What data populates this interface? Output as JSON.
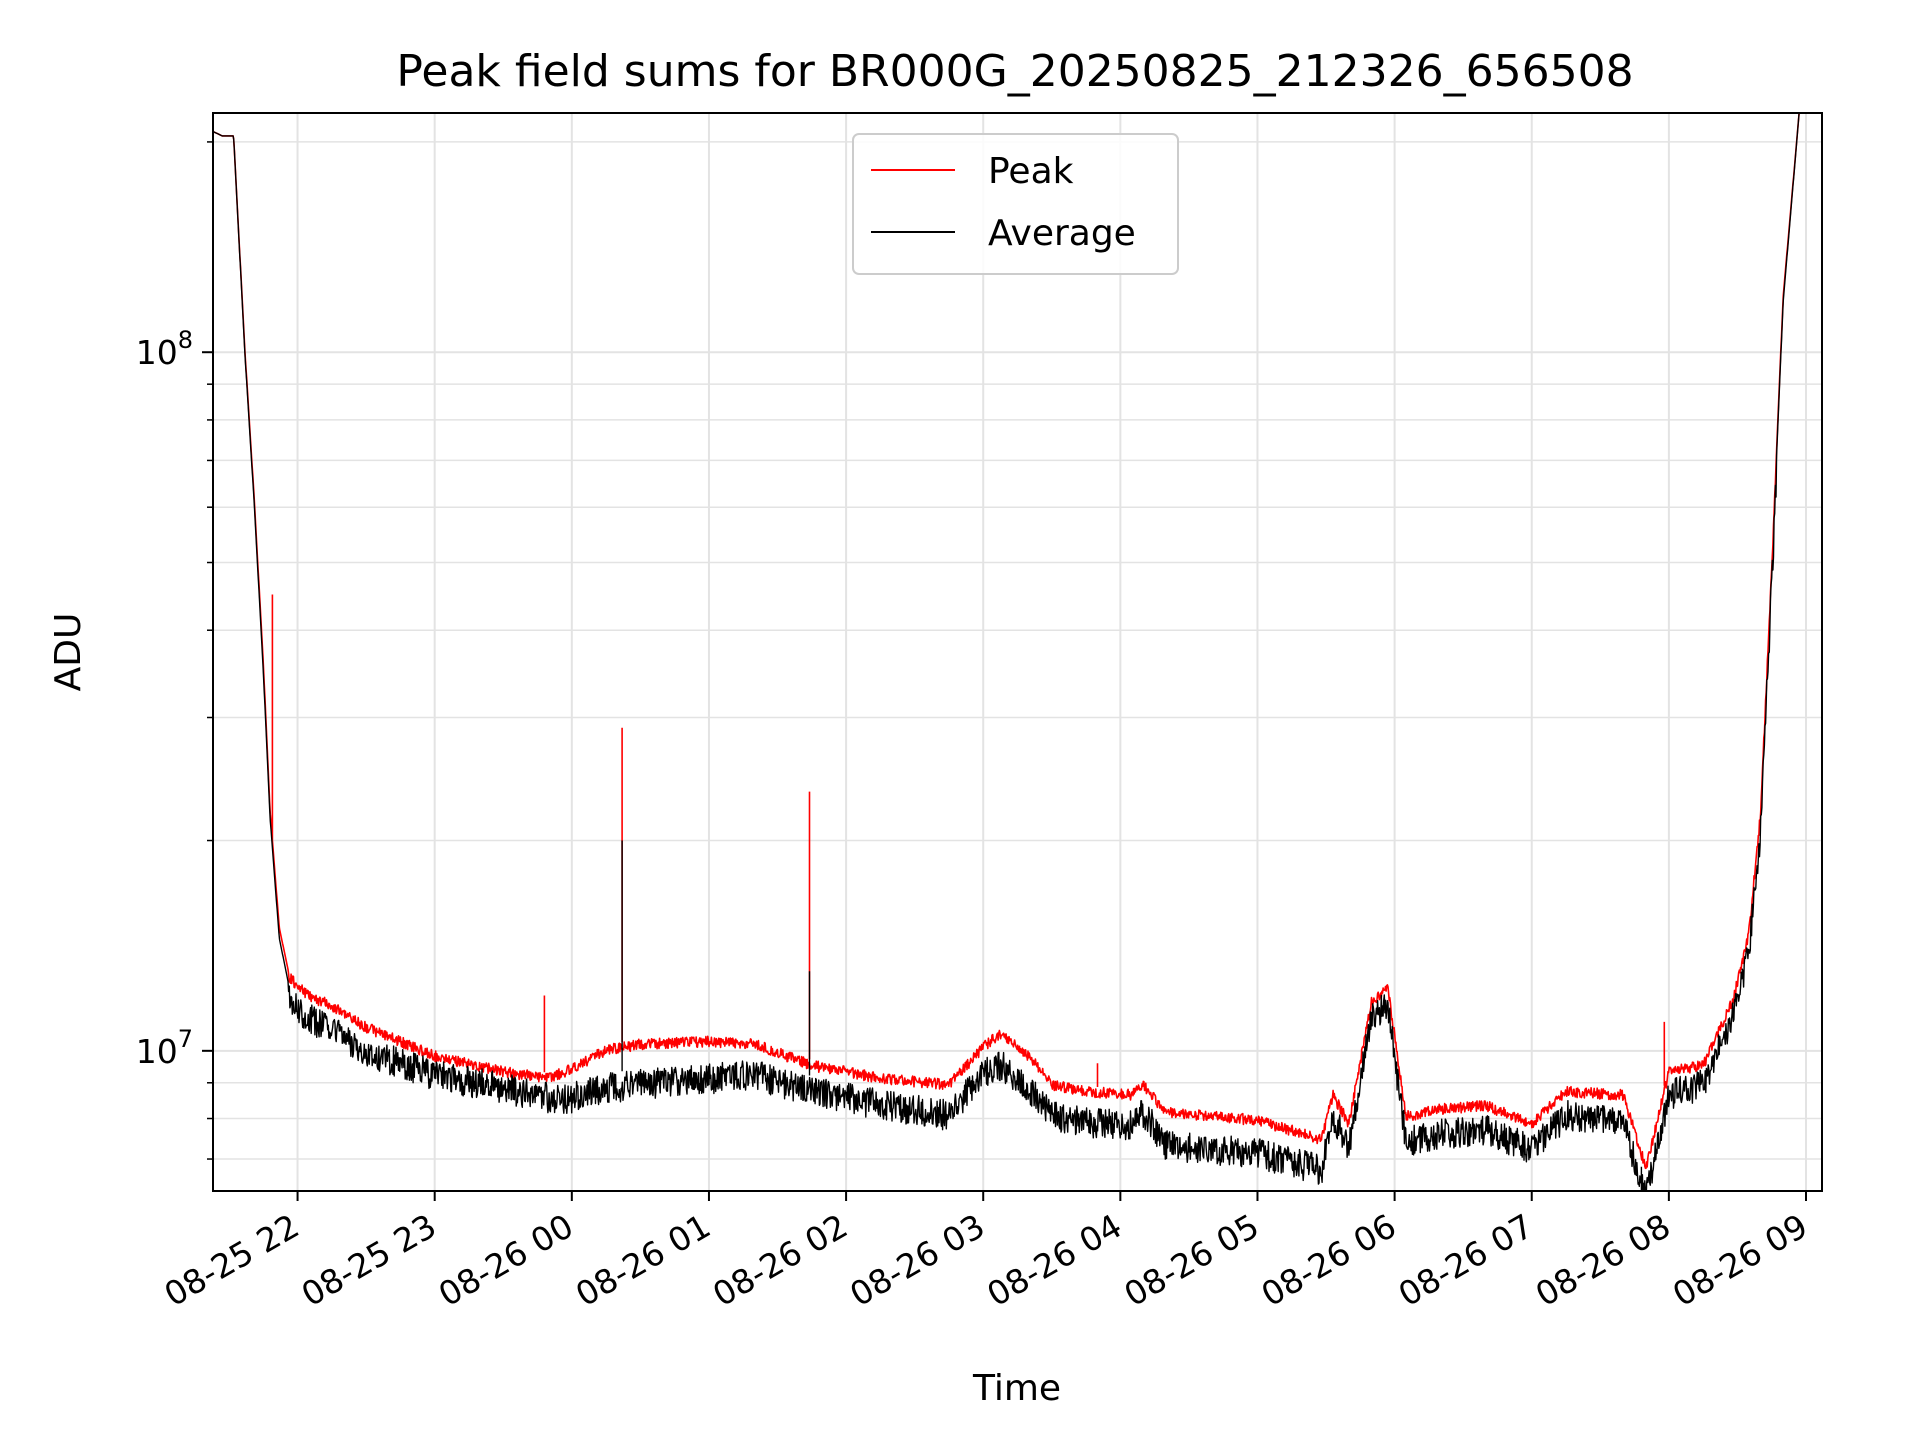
{
  "chart_data": {
    "type": "line",
    "title": "Peak field sums for BR000G_20250825_212326_656508",
    "xlabel": "Time",
    "ylabel": "ADU",
    "x_axis": {
      "kind": "datetime",
      "range": [
        "2025-08-25T21:23",
        "2025-08-26T09:07"
      ],
      "ticks": [
        "2025-08-25T22:00",
        "2025-08-25T23:00",
        "2025-08-26T00:00",
        "2025-08-26T01:00",
        "2025-08-26T02:00",
        "2025-08-26T03:00",
        "2025-08-26T04:00",
        "2025-08-26T05:00",
        "2025-08-26T06:00",
        "2025-08-26T07:00",
        "2025-08-26T08:00",
        "2025-08-26T09:00"
      ],
      "tick_labels": [
        "08-25 22",
        "08-25 23",
        "08-26 00",
        "08-26 01",
        "08-26 02",
        "08-26 03",
        "08-26 04",
        "08-26 05",
        "08-26 06",
        "08-26 07",
        "08-26 08",
        "08-26 09"
      ],
      "tick_label_rotation": 30
    },
    "y_axis": {
      "scale": "log",
      "range": [
        6300000,
        220000000
      ],
      "major_ticks": [
        10000000,
        100000000
      ],
      "major_tick_labels": [
        {
          "base": "10",
          "exp": "7"
        },
        {
          "base": "10",
          "exp": "8"
        }
      ],
      "minor_ticks": [
        7000000,
        8000000,
        9000000,
        20000000,
        30000000,
        40000000,
        50000000,
        60000000,
        70000000,
        80000000,
        90000000,
        200000000
      ]
    },
    "grid": true,
    "legend_position": "top-center",
    "series": [
      {
        "name": "Peak",
        "color": "#ff0000",
        "points": [
          [
            "2025-08-25T21:23",
            207000000
          ],
          [
            "2025-08-25T21:27",
            204000000
          ],
          [
            "2025-08-25T21:32",
            204000000
          ],
          [
            "2025-08-25T21:37",
            100000000
          ],
          [
            "2025-08-25T21:41",
            62000000
          ],
          [
            "2025-08-25T21:45",
            36000000
          ],
          [
            "2025-08-25T21:48",
            22000000
          ],
          [
            "2025-08-25T21:52",
            15000000
          ],
          [
            "2025-08-25T21:56",
            13000000
          ],
          [
            "2025-08-25T22:05",
            12200000
          ],
          [
            "2025-08-25T22:15",
            11800000
          ],
          [
            "2025-08-25T22:30",
            11000000
          ],
          [
            "2025-08-25T23:00",
            10000000
          ],
          [
            "2025-08-25T23:30",
            9500000
          ],
          [
            "2025-08-25T23:50",
            9300000
          ],
          [
            "2025-08-26T00:00",
            9600000
          ],
          [
            "2025-08-26T00:15",
            10200000
          ],
          [
            "2025-08-26T00:30",
            10400000
          ],
          [
            "2025-08-26T01:00",
            10500000
          ],
          [
            "2025-08-26T01:20",
            10400000
          ],
          [
            "2025-08-26T01:45",
            9700000
          ],
          [
            "2025-08-26T02:15",
            9300000
          ],
          [
            "2025-08-26T02:45",
            9100000
          ],
          [
            "2025-08-26T03:00",
            10300000
          ],
          [
            "2025-08-26T03:08",
            10800000
          ],
          [
            "2025-08-26T03:20",
            10000000
          ],
          [
            "2025-08-26T03:30",
            9100000
          ],
          [
            "2025-08-26T03:45",
            8900000
          ],
          [
            "2025-08-26T04:05",
            8800000
          ],
          [
            "2025-08-26T04:10",
            9100000
          ],
          [
            "2025-08-26T04:20",
            8300000
          ],
          [
            "2025-08-26T04:40",
            8200000
          ],
          [
            "2025-08-26T05:00",
            8100000
          ],
          [
            "2025-08-26T05:28",
            7600000
          ],
          [
            "2025-08-26T05:33",
            8800000
          ],
          [
            "2025-08-26T05:40",
            8000000
          ],
          [
            "2025-08-26T05:50",
            12000000
          ],
          [
            "2025-08-26T05:57",
            12500000
          ],
          [
            "2025-08-26T06:05",
            8200000
          ],
          [
            "2025-08-26T06:20",
            8400000
          ],
          [
            "2025-08-26T06:40",
            8500000
          ],
          [
            "2025-08-26T07:00",
            8000000
          ],
          [
            "2025-08-26T07:15",
            8900000
          ],
          [
            "2025-08-26T07:40",
            8800000
          ],
          [
            "2025-08-26T07:50",
            6900000
          ],
          [
            "2025-08-26T08:00",
            9500000
          ],
          [
            "2025-08-26T08:15",
            9700000
          ],
          [
            "2025-08-26T08:28",
            12000000
          ],
          [
            "2025-08-26T08:35",
            15000000
          ],
          [
            "2025-08-26T08:40",
            22000000
          ],
          [
            "2025-08-26T08:45",
            50000000
          ],
          [
            "2025-08-26T08:50",
            120000000
          ],
          [
            "2025-08-26T08:57",
            220000000
          ]
        ],
        "spikes": [
          [
            "2025-08-25T21:49",
            45000000
          ],
          [
            "2025-08-25T23:48",
            12000000
          ],
          [
            "2025-08-26T00:22",
            29000000
          ],
          [
            "2025-08-26T01:44",
            23500000
          ],
          [
            "2025-08-26T03:50",
            9600000
          ],
          [
            "2025-08-26T07:58",
            11000000
          ]
        ]
      },
      {
        "name": "Average",
        "color": "#000000",
        "points": [
          [
            "2025-08-25T21:23",
            207000000
          ],
          [
            "2025-08-25T21:27",
            204000000
          ],
          [
            "2025-08-25T21:32",
            204000000
          ],
          [
            "2025-08-25T21:37",
            99000000
          ],
          [
            "2025-08-25T21:41",
            61000000
          ],
          [
            "2025-08-25T21:45",
            35000000
          ],
          [
            "2025-08-25T21:48",
            21500000
          ],
          [
            "2025-08-25T21:52",
            14500000
          ],
          [
            "2025-08-25T21:56",
            12500000
          ],
          [
            "2025-08-25T22:05",
            11700000
          ],
          [
            "2025-08-25T22:15",
            11200000
          ],
          [
            "2025-08-25T22:30",
            10500000
          ],
          [
            "2025-08-25T23:00",
            9700000
          ],
          [
            "2025-08-25T23:30",
            9300000
          ],
          [
            "2025-08-25T23:50",
            9000000
          ],
          [
            "2025-08-26T00:00",
            9000000
          ],
          [
            "2025-08-26T00:15",
            9300000
          ],
          [
            "2025-08-26T00:30",
            9400000
          ],
          [
            "2025-08-26T01:00",
            9600000
          ],
          [
            "2025-08-26T01:20",
            9700000
          ],
          [
            "2025-08-26T01:45",
            9200000
          ],
          [
            "2025-08-26T02:15",
            8800000
          ],
          [
            "2025-08-26T02:45",
            8500000
          ],
          [
            "2025-08-26T03:00",
            9800000
          ],
          [
            "2025-08-26T03:08",
            10000000
          ],
          [
            "2025-08-26T03:20",
            9300000
          ],
          [
            "2025-08-26T03:30",
            8500000
          ],
          [
            "2025-08-26T03:45",
            8300000
          ],
          [
            "2025-08-26T04:05",
            8200000
          ],
          [
            "2025-08-26T04:10",
            8600000
          ],
          [
            "2025-08-26T04:20",
            7700000
          ],
          [
            "2025-08-26T04:40",
            7600000
          ],
          [
            "2025-08-26T05:00",
            7500000
          ],
          [
            "2025-08-26T05:28",
            7100000
          ],
          [
            "2025-08-26T05:33",
            8500000
          ],
          [
            "2025-08-26T05:40",
            7700000
          ],
          [
            "2025-08-26T05:50",
            11800000
          ],
          [
            "2025-08-26T05:57",
            12200000
          ],
          [
            "2025-08-26T06:05",
            7800000
          ],
          [
            "2025-08-26T06:20",
            8000000
          ],
          [
            "2025-08-26T06:40",
            8100000
          ],
          [
            "2025-08-26T07:00",
            7600000
          ],
          [
            "2025-08-26T07:15",
            8500000
          ],
          [
            "2025-08-26T07:40",
            8300000
          ],
          [
            "2025-08-26T07:50",
            6500000
          ],
          [
            "2025-08-26T08:00",
            9100000
          ],
          [
            "2025-08-26T08:15",
            9400000
          ],
          [
            "2025-08-26T08:28",
            11800000
          ],
          [
            "2025-08-26T08:35",
            14500000
          ],
          [
            "2025-08-26T08:40",
            21500000
          ],
          [
            "2025-08-26T08:45",
            49000000
          ],
          [
            "2025-08-26T08:50",
            118000000
          ],
          [
            "2025-08-26T08:57",
            220000000
          ]
        ],
        "spikes": [
          [
            "2025-08-26T00:22",
            20000000
          ],
          [
            "2025-08-26T01:44",
            13000000
          ],
          [
            "2025-08-26T07:48",
            6300000
          ]
        ]
      }
    ]
  }
}
